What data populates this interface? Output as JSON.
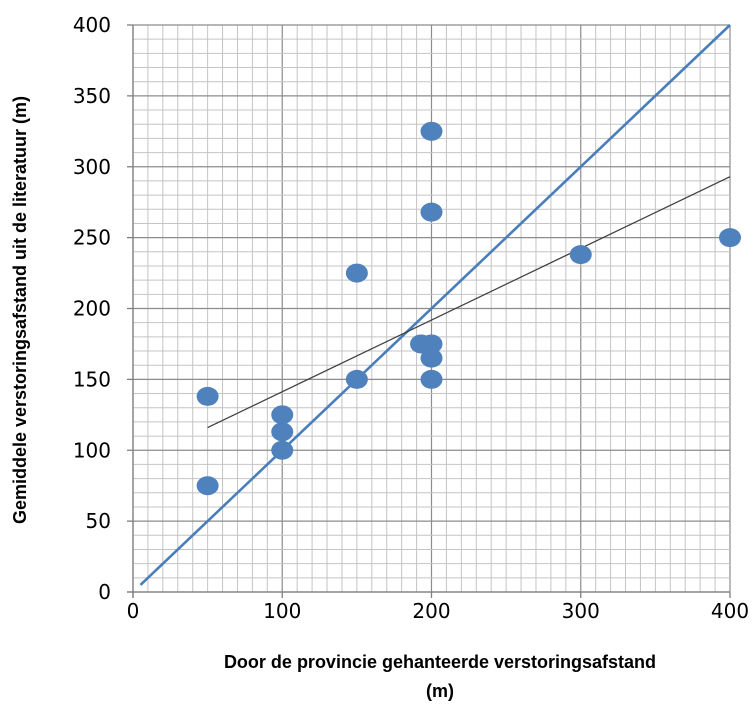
{
  "chart_data": {
    "type": "scatter",
    "xlabel_line1": "Door de provincie gehanteerde   verstoringsafstand",
    "xlabel_line2": "(m)",
    "ylabel": "Gemiddele verstoringsafstand uit de literatuur (m)",
    "xlim": [
      0,
      400
    ],
    "ylim": [
      0,
      400
    ],
    "x_ticks": [
      0,
      100,
      200,
      300,
      400
    ],
    "y_ticks": [
      0,
      50,
      100,
      150,
      200,
      250,
      300,
      350,
      400
    ],
    "grid": true,
    "legend": "none",
    "points": [
      {
        "x": 50,
        "y": 138
      },
      {
        "x": 50,
        "y": 75
      },
      {
        "x": 100,
        "y": 125
      },
      {
        "x": 100,
        "y": 113
      },
      {
        "x": 100,
        "y": 100
      },
      {
        "x": 150,
        "y": 225
      },
      {
        "x": 150,
        "y": 150
      },
      {
        "x": 193,
        "y": 175
      },
      {
        "x": 200,
        "y": 325
      },
      {
        "x": 200,
        "y": 268
      },
      {
        "x": 200,
        "y": 175
      },
      {
        "x": 200,
        "y": 165
      },
      {
        "x": 200,
        "y": 150
      },
      {
        "x": 300,
        "y": 238
      },
      {
        "x": 400,
        "y": 250
      }
    ],
    "lines": [
      {
        "kind": "identity",
        "color": "#4a7ebb",
        "x": [
          5,
          400
        ],
        "y": [
          5,
          400
        ]
      },
      {
        "kind": "trend",
        "color": "#404040",
        "x": [
          50,
          400
        ],
        "y": [
          116,
          293
        ]
      }
    ],
    "marker_color": "#4f81bd"
  }
}
